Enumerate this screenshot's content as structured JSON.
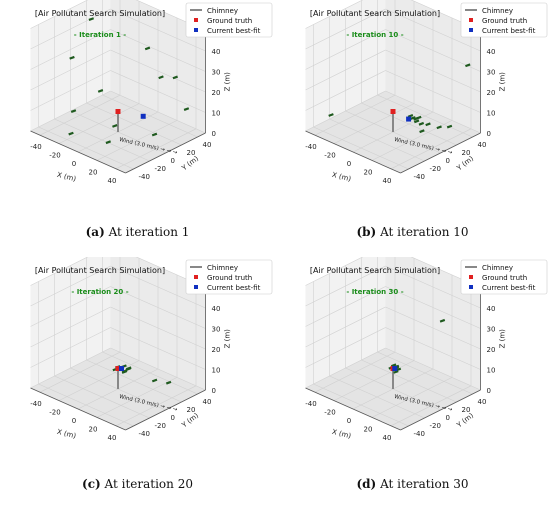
{
  "figure": {
    "panels": [
      {
        "id": "a",
        "label": "(a)",
        "caption": "At iteration 1"
      },
      {
        "id": "b",
        "label": "(b)",
        "caption": "At iteration 10"
      },
      {
        "id": "c",
        "label": "(c)",
        "caption": "At iteration 20"
      },
      {
        "id": "d",
        "label": "(d)",
        "caption": "At iteration 30"
      }
    ]
  },
  "chart_data": [
    {
      "type": "scatter",
      "projection": "3d",
      "title": "[Air Pollutant Search Simulation]",
      "subtitle": "- Iteration 1 -",
      "xlabel": "X (m)",
      "ylabel": "Y (m)",
      "zlabel": "Z (m)",
      "xlim": [
        -50,
        50
      ],
      "ylim": [
        -50,
        50
      ],
      "zlim": [
        0,
        50
      ],
      "xticks": [
        -40,
        -20,
        0,
        20,
        40
      ],
      "yticks": [
        -40,
        -20,
        0,
        20,
        40
      ],
      "zticks": [
        0,
        10,
        20,
        30,
        40,
        50
      ],
      "grid": true,
      "legend": "top-right",
      "legend_entries": [
        "Chimney",
        "Ground truth",
        "Current best-fit"
      ],
      "chimney": {
        "x": 0,
        "y": 0,
        "z_top": 10
      },
      "ground_truth": {
        "x": 0,
        "y": 0,
        "z": 10
      },
      "best_fit": {
        "x": 8,
        "y": 22,
        "z": 5
      },
      "wind_annotation": "Wind (3.0 m/s) → → →",
      "particles": [
        {
          "x": -40,
          "y": -10,
          "z": 30
        },
        {
          "x": -45,
          "y": 20,
          "z": 42
        },
        {
          "x": -30,
          "y": -20,
          "z": 8
        },
        {
          "x": -10,
          "y": -10,
          "z": 20
        },
        {
          "x": 10,
          "y": 25,
          "z": 38
        },
        {
          "x": 20,
          "y": 30,
          "z": 25
        },
        {
          "x": 35,
          "y": 30,
          "z": 28
        },
        {
          "x": 40,
          "y": 38,
          "z": 12
        },
        {
          "x": 15,
          "y": -30,
          "z": 4
        },
        {
          "x": -20,
          "y": -35,
          "z": 2
        },
        {
          "x": 30,
          "y": 10,
          "z": 3
        },
        {
          "x": 5,
          "y": -10,
          "z": 6
        }
      ]
    },
    {
      "type": "scatter",
      "projection": "3d",
      "title": "[Air Pollutant Search Simulation]",
      "subtitle": "- Iteration 10 -",
      "xlabel": "X (m)",
      "ylabel": "Y (m)",
      "zlabel": "Z (m)",
      "xlim": [
        -50,
        50
      ],
      "ylim": [
        -50,
        50
      ],
      "zlim": [
        0,
        50
      ],
      "xticks": [
        -40,
        -20,
        0,
        20,
        40
      ],
      "yticks": [
        -40,
        -20,
        0,
        20,
        40
      ],
      "zticks": [
        0,
        10,
        20,
        30,
        40,
        50
      ],
      "grid": true,
      "legend": "top-right",
      "legend_entries": [
        "Chimney",
        "Ground truth",
        "Current best-fit"
      ],
      "chimney": {
        "x": 0,
        "y": 0,
        "z_top": 10
      },
      "ground_truth": {
        "x": 0,
        "y": 0,
        "z": 10
      },
      "best_fit": {
        "x": 8,
        "y": 10,
        "z": 6
      },
      "wind_annotation": "Wind (3.0 m/s) → → →",
      "particles": [
        {
          "x": -40,
          "y": -30,
          "z": 6
        },
        {
          "x": 45,
          "y": 40,
          "z": 34
        },
        {
          "x": 10,
          "y": 10,
          "z": 8
        },
        {
          "x": 14,
          "y": 12,
          "z": 7
        },
        {
          "x": 12,
          "y": 18,
          "z": 6
        },
        {
          "x": 18,
          "y": 14,
          "z": 5
        },
        {
          "x": 20,
          "y": 20,
          "z": 4
        },
        {
          "x": 8,
          "y": 20,
          "z": 3
        },
        {
          "x": 25,
          "y": 28,
          "z": 2
        },
        {
          "x": 30,
          "y": 35,
          "z": 2
        },
        {
          "x": 22,
          "y": 10,
          "z": 3
        },
        {
          "x": 16,
          "y": 6,
          "z": 9
        }
      ]
    },
    {
      "type": "scatter",
      "projection": "3d",
      "title": "[Air Pollutant Search Simulation]",
      "subtitle": "- Iteration 20 -",
      "xlabel": "X (m)",
      "ylabel": "Y (m)",
      "zlabel": "Z (m)",
      "xlim": [
        -50,
        50
      ],
      "ylim": [
        -50,
        50
      ],
      "zlim": [
        0,
        50
      ],
      "xticks": [
        -40,
        -20,
        0,
        20,
        40
      ],
      "yticks": [
        -40,
        -20,
        0,
        20,
        40
      ],
      "zticks": [
        0,
        10,
        20,
        30,
        40,
        50
      ],
      "grid": true,
      "legend": "top-right",
      "legend_entries": [
        "Chimney",
        "Ground truth",
        "Current best-fit"
      ],
      "chimney": {
        "x": 0,
        "y": 0,
        "z_top": 10
      },
      "ground_truth": {
        "x": 0,
        "y": 0,
        "z": 10
      },
      "best_fit": {
        "x": 2,
        "y": 2,
        "z": 10
      },
      "wind_annotation": "Wind (3.0 m/s) → → →",
      "particles": [
        {
          "x": -2,
          "y": 2,
          "z": 10
        },
        {
          "x": 3,
          "y": 4,
          "z": 11
        },
        {
          "x": 5,
          "y": 2,
          "z": 9
        },
        {
          "x": 2,
          "y": 6,
          "z": 8
        },
        {
          "x": 6,
          "y": 6,
          "z": 10
        },
        {
          "x": 4,
          "y": 8,
          "z": 9
        },
        {
          "x": 8,
          "y": 4,
          "z": 11
        },
        {
          "x": -3,
          "y": 0,
          "z": 9
        },
        {
          "x": 20,
          "y": 22,
          "z": 4
        },
        {
          "x": 28,
          "y": 30,
          "z": 3
        }
      ]
    },
    {
      "type": "scatter",
      "projection": "3d",
      "title": "[Air Pollutant Search Simulation]",
      "subtitle": "- Iteration 30 -",
      "xlabel": "X (m)",
      "ylabel": "Y (m)",
      "zlabel": "Z (m)",
      "xlim": [
        -50,
        50
      ],
      "ylim": [
        -50,
        50
      ],
      "zlim": [
        0,
        50
      ],
      "xticks": [
        -40,
        -20,
        0,
        20,
        40
      ],
      "yticks": [
        -40,
        -20,
        0,
        20,
        40
      ],
      "zticks": [
        0,
        10,
        20,
        30,
        40,
        50
      ],
      "grid": true,
      "legend": "top-right",
      "legend_entries": [
        "Chimney",
        "Ground truth",
        "Current best-fit"
      ],
      "chimney": {
        "x": 0,
        "y": 0,
        "z_top": 10
      },
      "ground_truth": {
        "x": 0,
        "y": 0,
        "z": 10
      },
      "best_fit": {
        "x": 1,
        "y": 1,
        "z": 10
      },
      "wind_annotation": "Wind (3.0 m/s) → → →",
      "particles": [
        {
          "x": 0,
          "y": 1,
          "z": 10
        },
        {
          "x": 2,
          "y": 2,
          "z": 11
        },
        {
          "x": -2,
          "y": 0,
          "z": 10
        },
        {
          "x": 3,
          "y": 0,
          "z": 9
        },
        {
          "x": 1,
          "y": 3,
          "z": 10
        },
        {
          "x": -1,
          "y": 2,
          "z": 11
        },
        {
          "x": 4,
          "y": 2,
          "z": 10
        },
        {
          "x": 20,
          "y": 38,
          "z": 30
        }
      ]
    }
  ],
  "colors": {
    "chimney": "#888888",
    "ground_truth": "#e02020",
    "best_fit": "#1030c0",
    "particles": "#1f5a1f",
    "subtitle": "#1a8c1a",
    "pane_left": "#f2f2f2",
    "pane_right": "#ebebeb",
    "pane_floor": "#e4e4e4",
    "grid": "#d0d0d0"
  }
}
